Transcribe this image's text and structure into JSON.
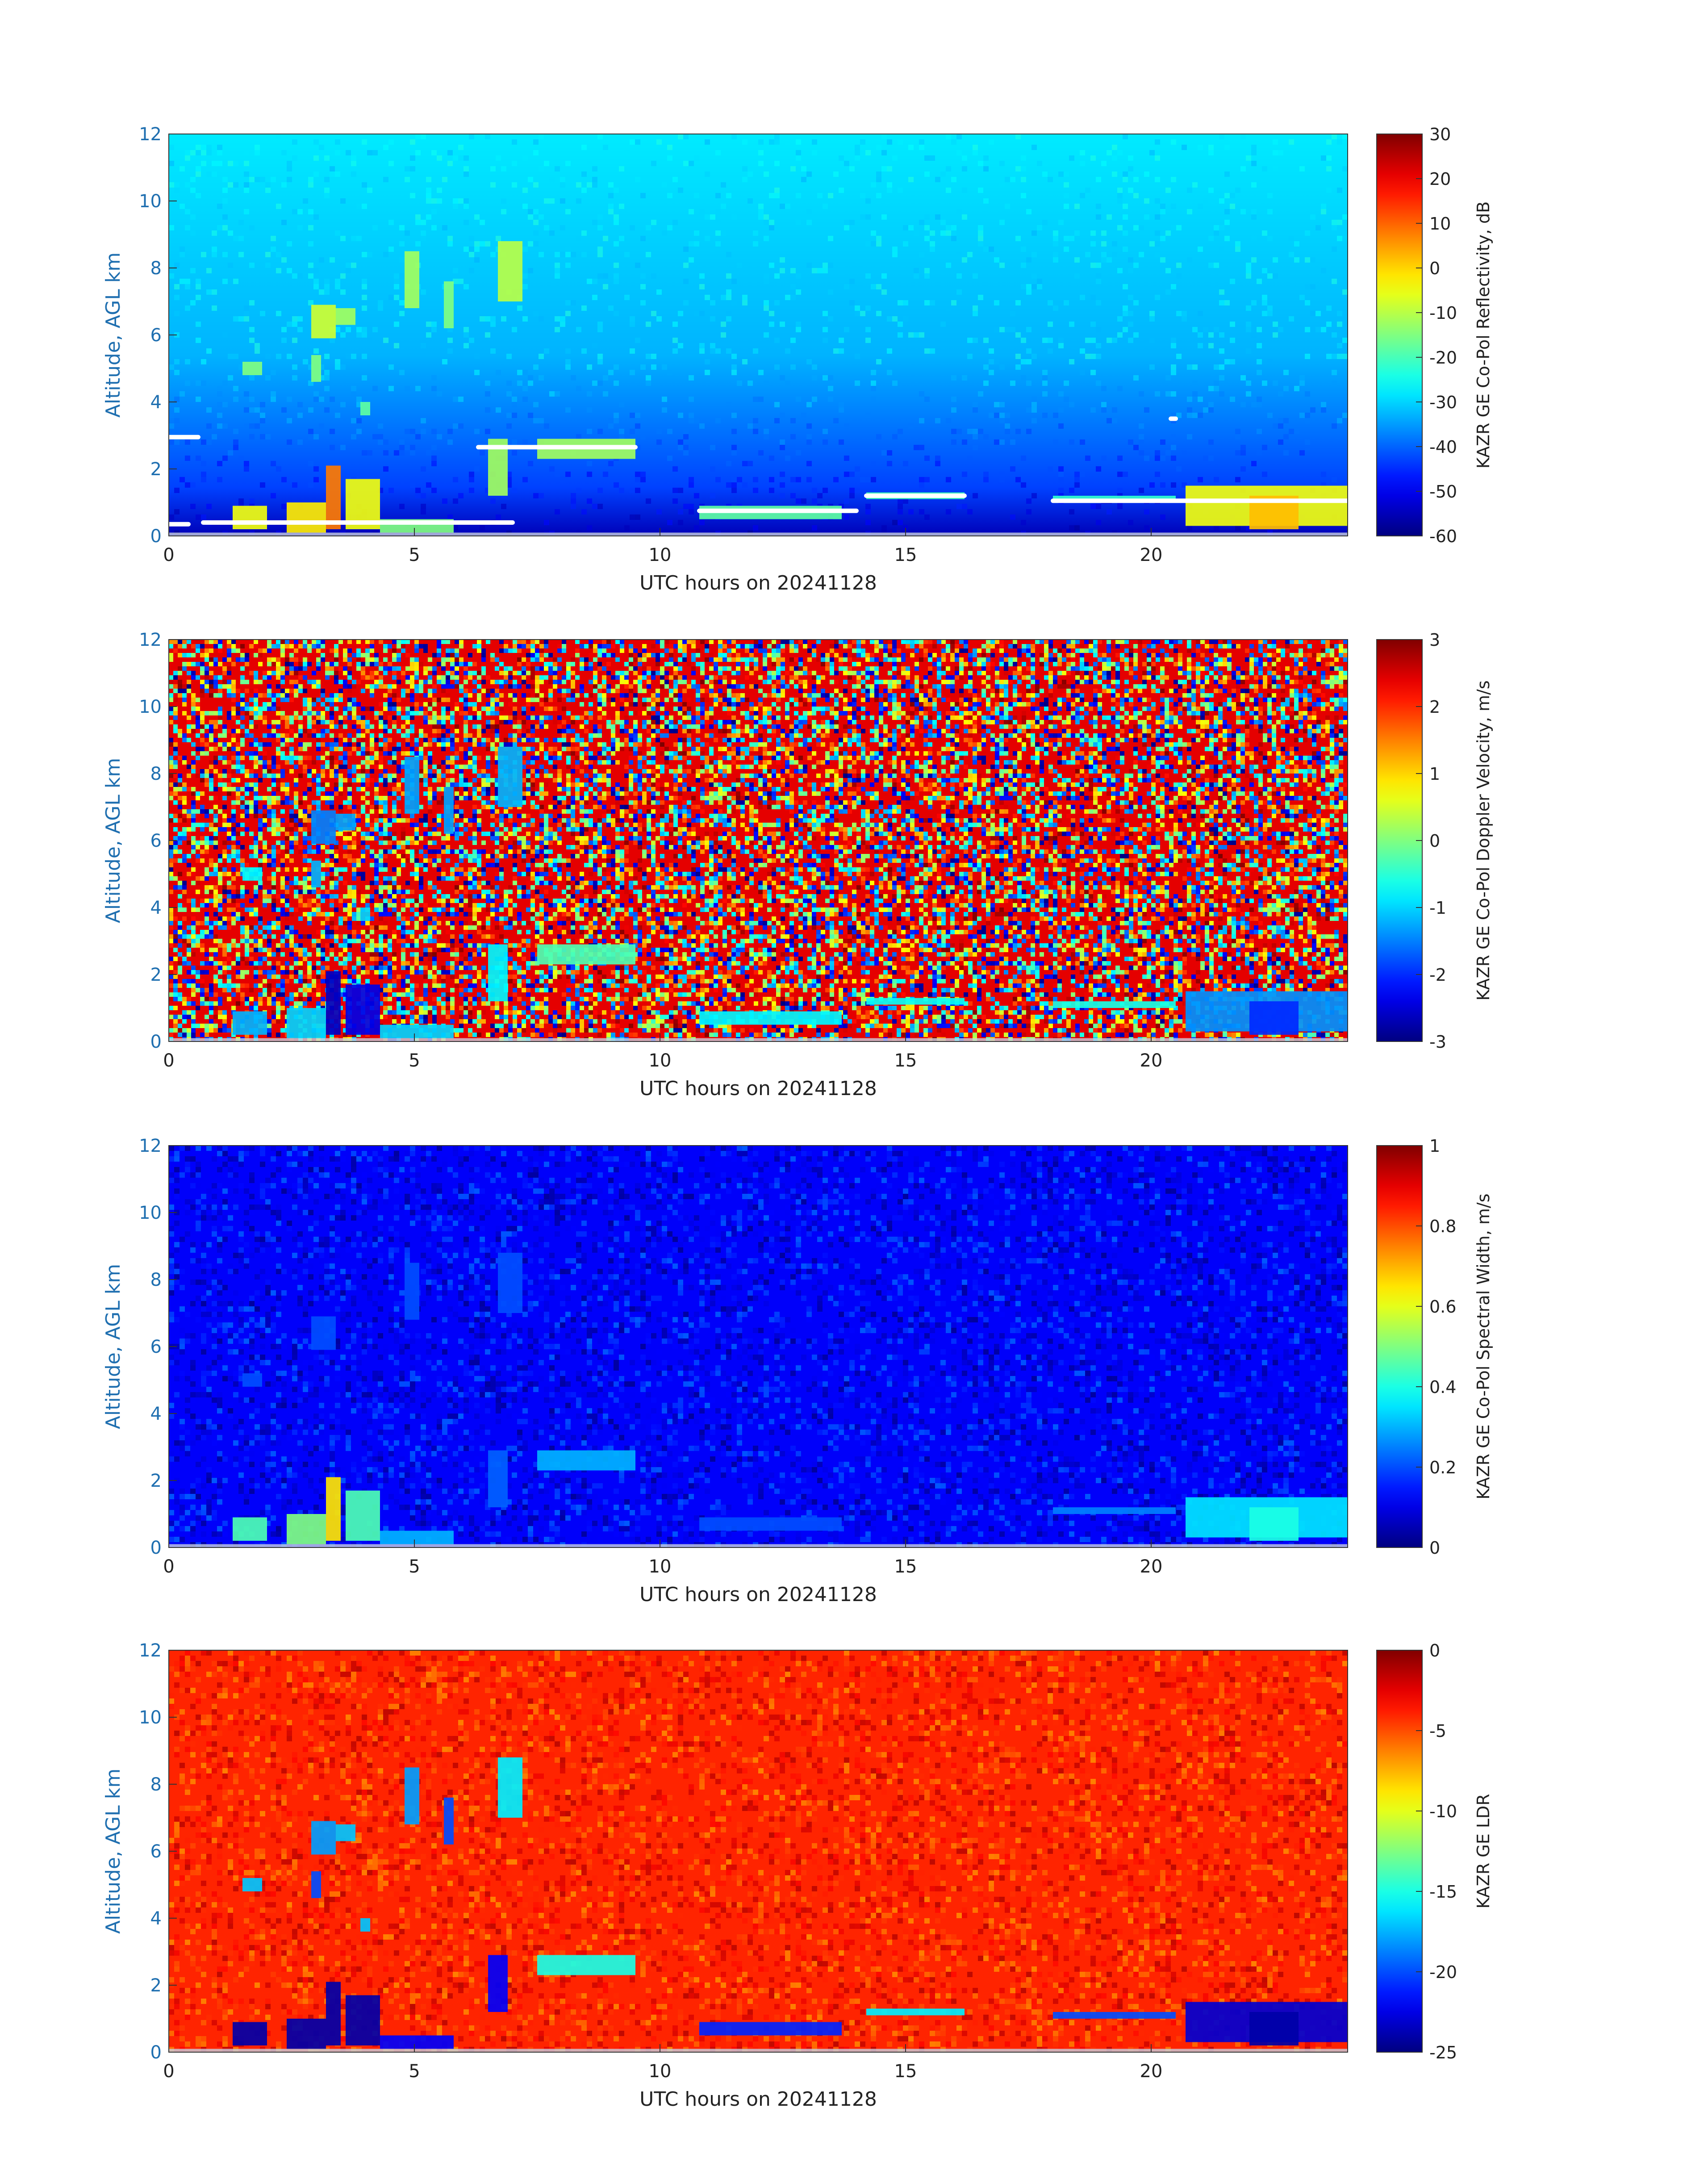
{
  "colors": {
    "axis_label": "#1f6fb0",
    "tick": "#222222",
    "axis_line": "#333333"
  },
  "chart_data": [
    {
      "type": "heatmap",
      "colormap": "jet",
      "xlabel": "UTC hours on 20241128",
      "ylabel": "Altitude, AGL km",
      "xlim": [
        0,
        24
      ],
      "ylim": [
        0,
        12
      ],
      "xticks": [
        0,
        5,
        10,
        15,
        20
      ],
      "yticks": [
        0,
        2,
        4,
        6,
        8,
        10,
        12
      ],
      "colorbar": {
        "label": "KAZR GE Co-Pol Reflectivity, dB",
        "range": [
          -60,
          30
        ],
        "ticks": [
          -60,
          -50,
          -40,
          -30,
          -20,
          -10,
          0,
          10,
          20,
          30
        ]
      },
      "background": {
        "near_surface": -55,
        "aloft": -28
      },
      "features": [
        {
          "x": [
            1.3,
            2.0
          ],
          "y": [
            0.2,
            0.9
          ],
          "value": -5
        },
        {
          "x": [
            2.4,
            3.2
          ],
          "y": [
            0.1,
            1.0
          ],
          "value": -2
        },
        {
          "x": [
            3.2,
            3.5
          ],
          "y": [
            0.2,
            2.1
          ],
          "value": 8
        },
        {
          "x": [
            3.6,
            4.3
          ],
          "y": [
            0.2,
            1.7
          ],
          "value": -5
        },
        {
          "x": [
            4.3,
            5.8
          ],
          "y": [
            0.1,
            0.5
          ],
          "value": -15
        },
        {
          "x": [
            1.5,
            1.9
          ],
          "y": [
            4.8,
            5.2
          ],
          "value": -15
        },
        {
          "x": [
            2.9,
            3.4
          ],
          "y": [
            5.9,
            6.9
          ],
          "value": -8
        },
        {
          "x": [
            3.4,
            3.8
          ],
          "y": [
            6.3,
            6.8
          ],
          "value": -12
        },
        {
          "x": [
            2.9,
            3.1
          ],
          "y": [
            4.6,
            5.4
          ],
          "value": -15
        },
        {
          "x": [
            3.9,
            4.1
          ],
          "y": [
            3.6,
            4.0
          ],
          "value": -18
        },
        {
          "x": [
            4.8,
            5.1
          ],
          "y": [
            6.8,
            8.5
          ],
          "value": -12
        },
        {
          "x": [
            5.6,
            5.8
          ],
          "y": [
            6.2,
            7.6
          ],
          "value": -15
        },
        {
          "x": [
            6.7,
            7.2
          ],
          "y": [
            7.0,
            8.8
          ],
          "value": -10
        },
        {
          "x": [
            6.5,
            6.9
          ],
          "y": [
            1.2,
            2.9
          ],
          "value": -12
        },
        {
          "x": [
            7.5,
            9.5
          ],
          "y": [
            2.3,
            2.9
          ],
          "value": -12
        },
        {
          "x": [
            10.8,
            13.7
          ],
          "y": [
            0.5,
            0.9
          ],
          "value": -18
        },
        {
          "x": [
            14.2,
            16.2
          ],
          "y": [
            1.1,
            1.3
          ],
          "value": -20
        },
        {
          "x": [
            18.0,
            20.5
          ],
          "y": [
            1.0,
            1.2
          ],
          "value": -22
        },
        {
          "x": [
            20.7,
            24.0
          ],
          "y": [
            0.3,
            1.5
          ],
          "value": -5
        },
        {
          "x": [
            22.0,
            23.0
          ],
          "y": [
            0.2,
            1.2
          ],
          "value": 2
        }
      ],
      "cloud_base_marks": [
        {
          "x": [
            0.0,
            0.6
          ],
          "y": 2.95
        },
        {
          "x": [
            0.0,
            0.4
          ],
          "y": 0.35
        },
        {
          "x": [
            0.7,
            7.0
          ],
          "y": 0.4
        },
        {
          "x": [
            6.3,
            9.5
          ],
          "y": 2.65
        },
        {
          "x": [
            10.8,
            14.0
          ],
          "y": 0.75
        },
        {
          "x": [
            14.2,
            16.2
          ],
          "y": 1.2
        },
        {
          "x": [
            18.0,
            24.0
          ],
          "y": 1.05
        },
        {
          "x": [
            20.4,
            20.5
          ],
          "y": 3.5
        }
      ]
    },
    {
      "type": "heatmap",
      "colormap": "jet",
      "xlabel": "UTC hours on 20241128",
      "ylabel": "Altitude, AGL km",
      "xlim": [
        0,
        24
      ],
      "ylim": [
        0,
        12
      ],
      "xticks": [
        0,
        5,
        10,
        15,
        20
      ],
      "yticks": [
        0,
        2,
        4,
        6,
        8,
        10,
        12
      ],
      "colorbar": {
        "label": "KAZR GE Co-Pol Doppler Velocity, m/s",
        "range": [
          -3,
          3
        ],
        "ticks": [
          -3,
          -2,
          -1,
          0,
          1,
          2,
          3
        ]
      },
      "background": {
        "type": "noise"
      },
      "features": [
        {
          "x": [
            1.3,
            2.0
          ],
          "y": [
            0.2,
            0.9
          ],
          "value": -1.2
        },
        {
          "x": [
            2.4,
            3.2
          ],
          "y": [
            0.1,
            1.0
          ],
          "value": -1.0
        },
        {
          "x": [
            3.2,
            3.5
          ],
          "y": [
            0.2,
            2.1
          ],
          "value": -2.6
        },
        {
          "x": [
            3.6,
            4.3
          ],
          "y": [
            0.2,
            1.7
          ],
          "value": -2.4
        },
        {
          "x": [
            4.3,
            5.8
          ],
          "y": [
            0.1,
            0.5
          ],
          "value": -1.0
        },
        {
          "x": [
            1.5,
            1.9
          ],
          "y": [
            4.8,
            5.2
          ],
          "value": -0.8
        },
        {
          "x": [
            2.9,
            3.4
          ],
          "y": [
            5.9,
            6.9
          ],
          "value": -1.5
        },
        {
          "x": [
            3.4,
            3.8
          ],
          "y": [
            6.3,
            6.8
          ],
          "value": -1.3
        },
        {
          "x": [
            2.9,
            3.1
          ],
          "y": [
            4.6,
            5.4
          ],
          "value": -1.2
        },
        {
          "x": [
            3.9,
            4.1
          ],
          "y": [
            3.6,
            4.0
          ],
          "value": -1.0
        },
        {
          "x": [
            4.8,
            5.1
          ],
          "y": [
            6.8,
            8.5
          ],
          "value": -1.3
        },
        {
          "x": [
            5.6,
            5.8
          ],
          "y": [
            6.2,
            7.6
          ],
          "value": -1.3
        },
        {
          "x": [
            6.7,
            7.2
          ],
          "y": [
            7.0,
            8.8
          ],
          "value": -1.2
        },
        {
          "x": [
            6.5,
            6.9
          ],
          "y": [
            1.2,
            2.9
          ],
          "value": -0.8
        },
        {
          "x": [
            7.5,
            9.5
          ],
          "y": [
            2.3,
            2.9
          ],
          "value": -0.3
        },
        {
          "x": [
            10.8,
            13.7
          ],
          "y": [
            0.5,
            0.9
          ],
          "value": -0.8
        },
        {
          "x": [
            14.2,
            16.2
          ],
          "y": [
            1.1,
            1.3
          ],
          "value": -0.7
        },
        {
          "x": [
            18.0,
            20.5
          ],
          "y": [
            1.0,
            1.2
          ],
          "value": -0.6
        },
        {
          "x": [
            20.7,
            24.0
          ],
          "y": [
            0.3,
            1.5
          ],
          "value": -1.4
        },
        {
          "x": [
            22.0,
            23.0
          ],
          "y": [
            0.2,
            1.2
          ],
          "value": -2.0
        }
      ]
    },
    {
      "type": "heatmap",
      "colormap": "jet",
      "xlabel": "UTC hours on 20241128",
      "ylabel": "Altitude, AGL km",
      "xlim": [
        0,
        24
      ],
      "ylim": [
        0,
        12
      ],
      "xticks": [
        0,
        5,
        10,
        15,
        20
      ],
      "yticks": [
        0,
        2,
        4,
        6,
        8,
        10,
        12
      ],
      "colorbar": {
        "label": "KAZR GE Co-Pol Spectral Width, m/s",
        "range": [
          0,
          1
        ],
        "ticks": [
          0,
          0.2,
          0.4,
          0.6,
          0.8,
          1
        ]
      },
      "background": {
        "value": 0.12
      },
      "features": [
        {
          "x": [
            1.3,
            2.0
          ],
          "y": [
            0.2,
            0.9
          ],
          "value": 0.45
        },
        {
          "x": [
            2.4,
            3.2
          ],
          "y": [
            0.1,
            1.0
          ],
          "value": 0.5
        },
        {
          "x": [
            3.2,
            3.5
          ],
          "y": [
            0.2,
            2.1
          ],
          "value": 0.65
        },
        {
          "x": [
            3.6,
            4.3
          ],
          "y": [
            0.2,
            1.7
          ],
          "value": 0.45
        },
        {
          "x": [
            4.3,
            5.8
          ],
          "y": [
            0.1,
            0.5
          ],
          "value": 0.3
        },
        {
          "x": [
            1.5,
            1.9
          ],
          "y": [
            4.8,
            5.2
          ],
          "value": 0.2
        },
        {
          "x": [
            2.9,
            3.4
          ],
          "y": [
            5.9,
            6.9
          ],
          "value": 0.2
        },
        {
          "x": [
            4.8,
            5.1
          ],
          "y": [
            6.8,
            8.5
          ],
          "value": 0.2
        },
        {
          "x": [
            6.7,
            7.2
          ],
          "y": [
            7.0,
            8.8
          ],
          "value": 0.2
        },
        {
          "x": [
            6.5,
            6.9
          ],
          "y": [
            1.2,
            2.9
          ],
          "value": 0.22
        },
        {
          "x": [
            7.5,
            9.5
          ],
          "y": [
            2.3,
            2.9
          ],
          "value": 0.3
        },
        {
          "x": [
            10.8,
            13.7
          ],
          "y": [
            0.5,
            0.9
          ],
          "value": 0.2
        },
        {
          "x": [
            18.0,
            20.5
          ],
          "y": [
            1.0,
            1.2
          ],
          "value": 0.25
        },
        {
          "x": [
            20.7,
            24.0
          ],
          "y": [
            0.3,
            1.5
          ],
          "value": 0.35
        },
        {
          "x": [
            22.0,
            23.0
          ],
          "y": [
            0.2,
            1.2
          ],
          "value": 0.4
        }
      ]
    },
    {
      "type": "heatmap",
      "colormap": "jet",
      "xlabel": "UTC hours on 20241128",
      "ylabel": "Altitude, AGL km",
      "xlim": [
        0,
        24
      ],
      "ylim": [
        0,
        12
      ],
      "xticks": [
        0,
        5,
        10,
        15,
        20
      ],
      "yticks": [
        0,
        2,
        4,
        6,
        8,
        10,
        12
      ],
      "colorbar": {
        "label": "KAZR GE LDR",
        "range": [
          -25,
          0
        ],
        "ticks": [
          -25,
          -20,
          -15,
          -10,
          -5,
          0
        ]
      },
      "background": {
        "value": -4
      },
      "features": [
        {
          "x": [
            1.3,
            2.0
          ],
          "y": [
            0.2,
            0.9
          ],
          "value": -24
        },
        {
          "x": [
            2.4,
            3.2
          ],
          "y": [
            0.1,
            1.0
          ],
          "value": -24
        },
        {
          "x": [
            3.2,
            3.5
          ],
          "y": [
            0.2,
            2.1
          ],
          "value": -24
        },
        {
          "x": [
            3.6,
            4.3
          ],
          "y": [
            0.2,
            1.7
          ],
          "value": -24
        },
        {
          "x": [
            4.3,
            5.8
          ],
          "y": [
            0.1,
            0.5
          ],
          "value": -22
        },
        {
          "x": [
            1.5,
            1.9
          ],
          "y": [
            4.8,
            5.2
          ],
          "value": -17
        },
        {
          "x": [
            2.9,
            3.4
          ],
          "y": [
            5.9,
            6.9
          ],
          "value": -18
        },
        {
          "x": [
            3.4,
            3.8
          ],
          "y": [
            6.3,
            6.8
          ],
          "value": -17
        },
        {
          "x": [
            2.9,
            3.1
          ],
          "y": [
            4.6,
            5.4
          ],
          "value": -20
        },
        {
          "x": [
            3.9,
            4.1
          ],
          "y": [
            3.6,
            4.0
          ],
          "value": -17
        },
        {
          "x": [
            4.8,
            5.1
          ],
          "y": [
            6.8,
            8.5
          ],
          "value": -18
        },
        {
          "x": [
            5.6,
            5.8
          ],
          "y": [
            6.2,
            7.6
          ],
          "value": -20
        },
        {
          "x": [
            6.7,
            7.2
          ],
          "y": [
            7.0,
            8.8
          ],
          "value": -16
        },
        {
          "x": [
            6.5,
            6.9
          ],
          "y": [
            1.2,
            2.9
          ],
          "value": -22
        },
        {
          "x": [
            7.5,
            9.5
          ],
          "y": [
            2.3,
            2.9
          ],
          "value": -15
        },
        {
          "x": [
            10.8,
            13.7
          ],
          "y": [
            0.5,
            0.9
          ],
          "value": -21
        },
        {
          "x": [
            14.2,
            16.2
          ],
          "y": [
            1.1,
            1.3
          ],
          "value": -16
        },
        {
          "x": [
            18.0,
            20.5
          ],
          "y": [
            1.0,
            1.2
          ],
          "value": -20
        },
        {
          "x": [
            20.7,
            24.0
          ],
          "y": [
            0.3,
            1.5
          ],
          "value": -23
        },
        {
          "x": [
            22.0,
            23.0
          ],
          "y": [
            0.2,
            1.2
          ],
          "value": -24
        }
      ]
    }
  ]
}
